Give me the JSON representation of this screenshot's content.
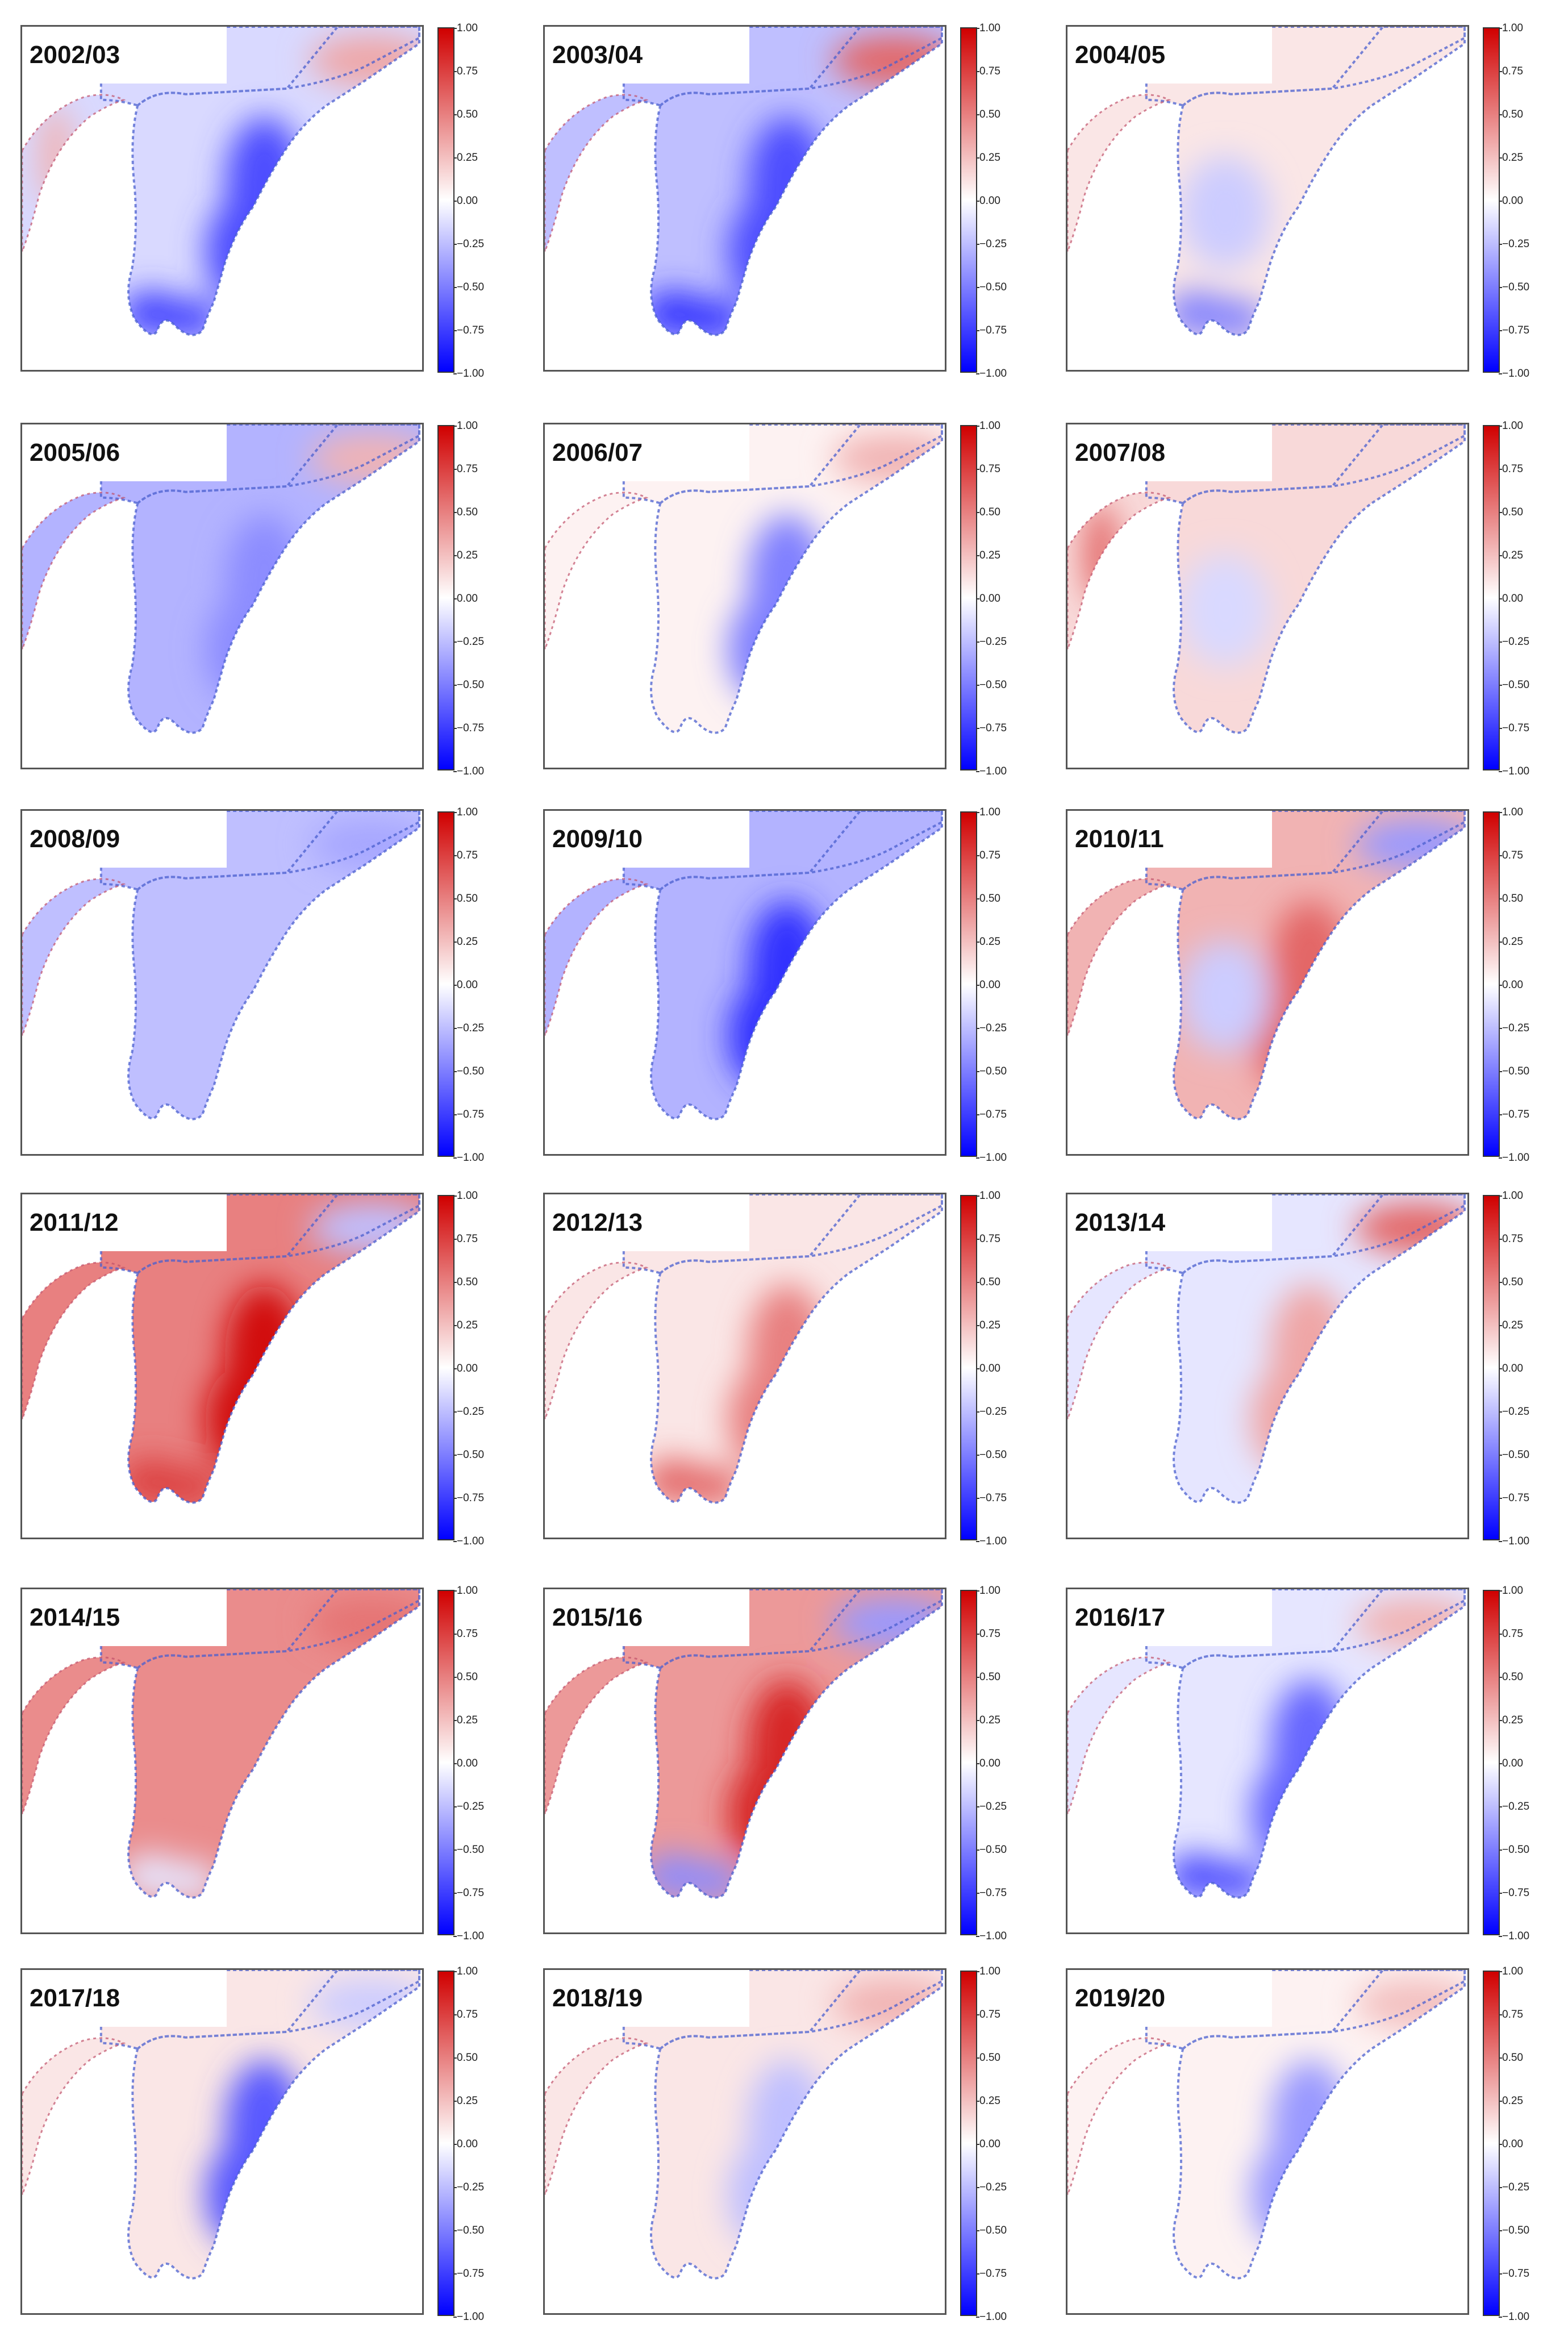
{
  "figure": {
    "colorbar_ticks": [
      "1.00",
      "0.75",
      "0.50",
      "0.25",
      "0.00",
      "−0.25",
      "−0.50",
      "−0.75",
      "−1.00"
    ],
    "colorbar_range": [
      -1.0,
      1.0
    ],
    "colormap": {
      "high": "#d00000",
      "mid": "#ffffff",
      "low": "#0000ff"
    },
    "panels": [
      {
        "year": "2002/03",
        "overall": -0.15,
        "hotspots": [
          {
            "region": "east-coast",
            "v": -0.7
          },
          {
            "region": "south-tip",
            "v": -0.75
          },
          {
            "region": "north-east",
            "v": 0.35
          },
          {
            "region": "west-strip",
            "v": 0.3
          }
        ]
      },
      {
        "year": "2003/04",
        "overall": -0.25,
        "hotspots": [
          {
            "region": "east-coast",
            "v": -0.7
          },
          {
            "region": "south-tip",
            "v": -0.8
          },
          {
            "region": "north-east",
            "v": 0.6
          }
        ]
      },
      {
        "year": "2004/05",
        "overall": 0.1,
        "hotspots": [
          {
            "region": "center",
            "v": -0.2
          },
          {
            "region": "south-tip",
            "v": -0.5
          }
        ]
      },
      {
        "year": "2005/06",
        "overall": -0.3,
        "hotspots": [
          {
            "region": "east-coast",
            "v": -0.45
          },
          {
            "region": "north-east",
            "v": 0.3
          }
        ]
      },
      {
        "year": "2006/07",
        "overall": 0.05,
        "hotspots": [
          {
            "region": "east-coast",
            "v": -0.5
          },
          {
            "region": "north-east",
            "v": 0.3
          }
        ]
      },
      {
        "year": "2007/08",
        "overall": 0.15,
        "hotspots": [
          {
            "region": "center",
            "v": -0.15
          },
          {
            "region": "west-strip",
            "v": 0.6
          }
        ]
      },
      {
        "year": "2008/09",
        "overall": -0.25,
        "hotspots": [
          {
            "region": "north-east",
            "v": -0.35
          }
        ]
      },
      {
        "year": "2009/10",
        "overall": -0.3,
        "hotspots": [
          {
            "region": "east-coast",
            "v": -0.8
          }
        ]
      },
      {
        "year": "2010/11",
        "overall": 0.3,
        "hotspots": [
          {
            "region": "east-coast",
            "v": 0.6
          },
          {
            "region": "center",
            "v": -0.2
          },
          {
            "region": "north-east",
            "v": -0.4
          }
        ]
      },
      {
        "year": "2011/12",
        "overall": 0.5,
        "hotspots": [
          {
            "region": "east-coast",
            "v": 0.95
          },
          {
            "region": "south-tip",
            "v": 0.75
          },
          {
            "region": "north-east",
            "v": -0.25
          }
        ]
      },
      {
        "year": "2012/13",
        "overall": 0.1,
        "hotspots": [
          {
            "region": "east-coast",
            "v": 0.5
          },
          {
            "region": "south-tip",
            "v": 0.6
          }
        ]
      },
      {
        "year": "2013/14",
        "overall": -0.1,
        "hotspots": [
          {
            "region": "east-coast",
            "v": 0.35
          },
          {
            "region": "north-east",
            "v": 0.6
          }
        ]
      },
      {
        "year": "2014/15",
        "overall": 0.45,
        "hotspots": [
          {
            "region": "south-tip",
            "v": -0.1
          },
          {
            "region": "north-east",
            "v": 0.55
          }
        ]
      },
      {
        "year": "2015/16",
        "overall": 0.4,
        "hotspots": [
          {
            "region": "east-coast",
            "v": 0.85
          },
          {
            "region": "south-tip",
            "v": -0.45
          },
          {
            "region": "north-east",
            "v": -0.4
          }
        ]
      },
      {
        "year": "2016/17",
        "overall": -0.1,
        "hotspots": [
          {
            "region": "east-coast",
            "v": -0.6
          },
          {
            "region": "south-tip",
            "v": -0.7
          },
          {
            "region": "north-east",
            "v": 0.3
          }
        ]
      },
      {
        "year": "2017/18",
        "overall": 0.1,
        "hotspots": [
          {
            "region": "east-coast",
            "v": -0.65
          },
          {
            "region": "north-east",
            "v": -0.2
          }
        ]
      },
      {
        "year": "2018/19",
        "overall": 0.1,
        "hotspots": [
          {
            "region": "north-east",
            "v": 0.3
          },
          {
            "region": "east-coast",
            "v": -0.25
          }
        ]
      },
      {
        "year": "2019/20",
        "overall": 0.05,
        "hotspots": [
          {
            "region": "east-coast",
            "v": -0.4
          },
          {
            "region": "north-east",
            "v": 0.25
          }
        ]
      }
    ]
  }
}
